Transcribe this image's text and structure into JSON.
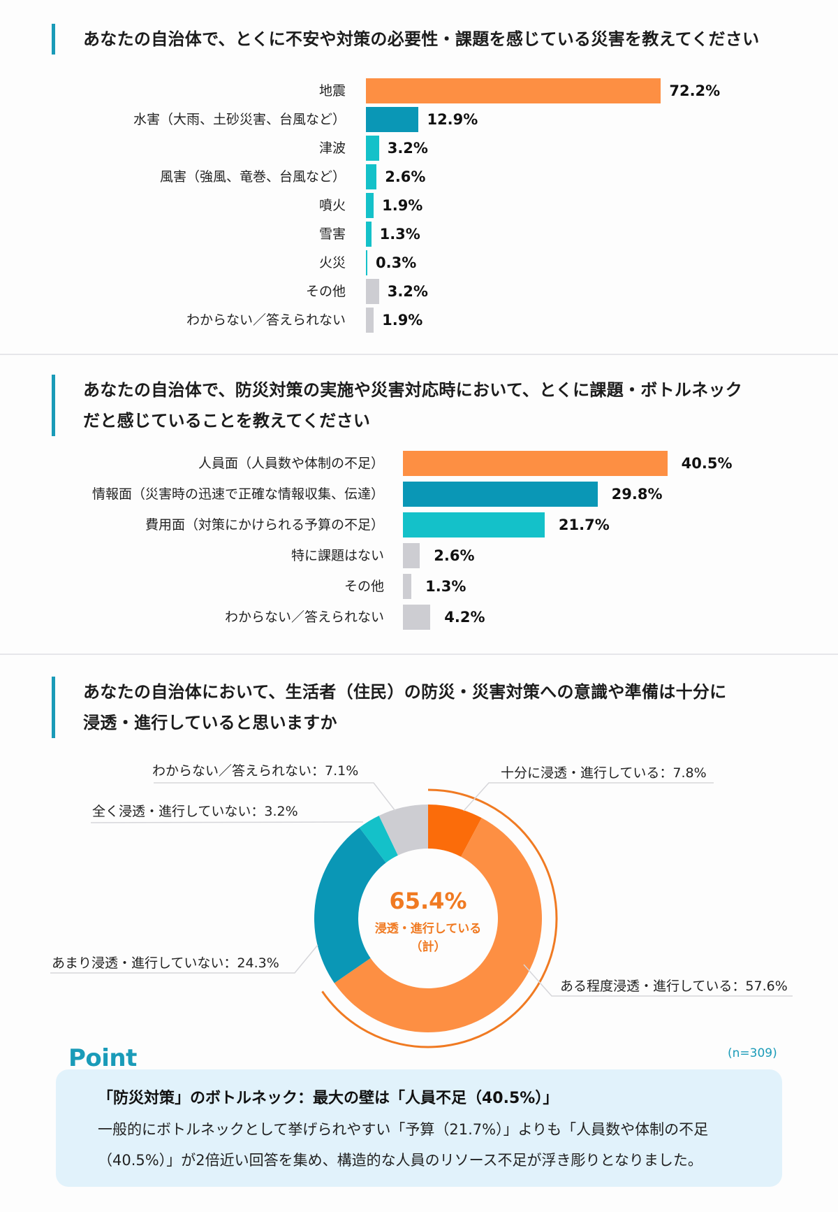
{
  "section1": {
    "title": "あなたの自治体で、とくに不安や対策の必要性・課題を感じている災害を教えてください"
  },
  "section2": {
    "title_line1": "あなたの自治体で、防災対策の実施や災害対応時において、とくに課題・ボトルネック",
    "title_line2": "だと感じていることを教えてください"
  },
  "section3": {
    "title_line1": "あなたの自治体において、生活者（住民）の防災・災害対策への意識や準備は十分に",
    "title_line2": "浸透・進行していると思いますか",
    "center_value": "65.4%",
    "center_label": "浸透・進行している",
    "center_label2": "（計）"
  },
  "colors": {
    "orange": "#fd8f43",
    "dark_orange": "#fb6c0a",
    "teal_dark": "#0a97b6",
    "teal_light": "#14c1c9",
    "gray": "#cdcdd2",
    "accent": "#1a9bb8"
  },
  "point": {
    "heading": "Point",
    "n_note": "(n=309)",
    "title": "「防災対策」のボトルネック：最大の壁は「人員不足（40.5%）」",
    "body": "一般的にボトルネックとして挙げられやすい「予算（21.7%）」よりも「人員数や体制の不足（40.5%）」が2倍近い回答を集め、構造的な人員のリソース不足が浮き彫りとなりました。"
  },
  "chart_data": [
    {
      "type": "bar",
      "orientation": "horizontal",
      "title": "あなたの自治体で、とくに不安や対策の必要性・課題を感じている災害を教えてください",
      "categories": [
        "地震",
        "水害（大雨、土砂災害、台風など）",
        "津波",
        "風害（強風、竜巻、台風など）",
        "噴火",
        "雪害",
        "火災",
        "その他",
        "わからない／答えられない"
      ],
      "values": [
        72.2,
        12.9,
        3.2,
        2.6,
        1.9,
        1.3,
        0.3,
        3.2,
        1.9
      ],
      "labels": [
        "72.2%",
        "12.9%",
        "3.2%",
        "2.6%",
        "1.9%",
        "1.3%",
        "0.3%",
        "3.2%",
        "1.9%"
      ],
      "bar_colors": [
        "#fd8f43",
        "#0a97b6",
        "#14c1c9",
        "#14c1c9",
        "#14c1c9",
        "#14c1c9",
        "#14c1c9",
        "#cdcdd2",
        "#cdcdd2"
      ],
      "unit": "%",
      "grid": false,
      "legend": false
    },
    {
      "type": "bar",
      "orientation": "horizontal",
      "title": "あなたの自治体で、防災対策の実施や災害対応時において、とくに課題・ボトルネックだと感じていることを教えてください",
      "categories": [
        "人員面（人員数や体制の不足）",
        "情報面（災害時の迅速で正確な情報収集、伝達）",
        "費用面（対策にかけられる予算の不足）",
        "特に課題はない",
        "その他",
        "わからない／答えられない"
      ],
      "values": [
        40.5,
        29.8,
        21.7,
        2.6,
        1.3,
        4.2
      ],
      "labels": [
        "40.5%",
        "29.8%",
        "21.7%",
        "2.6%",
        "1.3%",
        "4.2%"
      ],
      "bar_colors": [
        "#fd8f43",
        "#0a97b6",
        "#14c1c9",
        "#cdcdd2",
        "#cdcdd2",
        "#cdcdd2"
      ],
      "unit": "%",
      "grid": false,
      "legend": false
    },
    {
      "type": "pie",
      "variant": "donut",
      "title": "あなたの自治体において、生活者（住民）の防災・災害対策への意識や準備は十分に浸透・進行していると思いますか",
      "categories": [
        "十分に浸透・進行している",
        "ある程度浸透・進行している",
        "あまり浸透・進行していない",
        "全く浸透・進行していない",
        "わからない／答えられない"
      ],
      "values": [
        7.8,
        57.6,
        24.3,
        3.2,
        7.1
      ],
      "labels": [
        "十分に浸透・進行している：7.8%",
        "ある程度浸透・進行している：57.6%",
        "あまり浸透・進行していない：24.3%",
        "全く浸透・進行していない：3.2%",
        "わからない／答えられない：7.1%"
      ],
      "slice_colors": [
        "#fb6c0a",
        "#fd8f43",
        "#0a97b6",
        "#14c1c9",
        "#cdcdd2"
      ],
      "center_annotation": "65.4% 浸透・進行している（計）",
      "sample_size": "n=309"
    }
  ]
}
